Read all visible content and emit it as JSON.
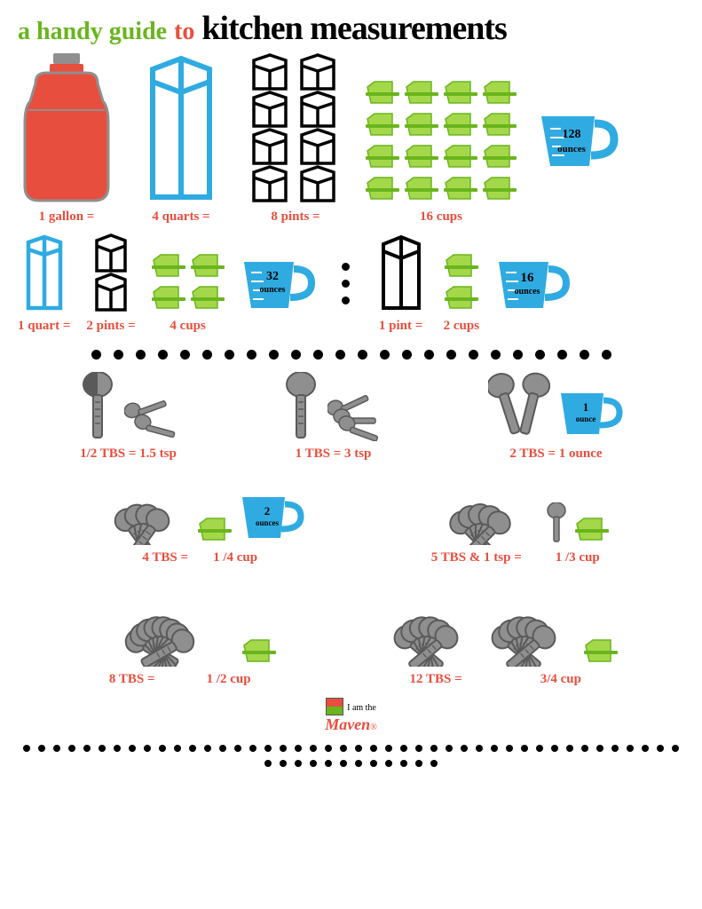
{
  "title": {
    "a_handy_guide": "a handy guide",
    "to": "to",
    "kitchen_measurements": "kitchen measurements",
    "color_green": "#6ab51e",
    "color_red": "#e84e3d",
    "color_black": "#000000"
  },
  "colors": {
    "red_fill": "#e84e3d",
    "blue": "#2fabe1",
    "green": "#a4d84a",
    "green_dark": "#6ab51e",
    "label_red": "#e84e3d",
    "gray": "#8f8f8f",
    "gray_dark": "#5a5a5a",
    "black": "#000000"
  },
  "row1": {
    "gallon_label": "1 gallon  =",
    "quarts_label": "4 quarts  =",
    "pints_label": "8 pints  =",
    "cups_label": "16 cups",
    "ounces_128": "128",
    "ounces_word": "ounces"
  },
  "row2": {
    "quart_label": "1 quart  =",
    "pints2_label": "2 pints  =",
    "cups4_label": "4 cups",
    "ounces_32": "32",
    "pint1_label": "1 pint  =",
    "cups2_label": "2 cups",
    "ounces_16": "16"
  },
  "row3": {
    "half_tbs": "1/2 TBS = 1.5 tsp",
    "one_tbs": "1 TBS =   3 tsp",
    "two_tbs": "2 TBS = 1 ounce",
    "ounce_1": "1",
    "ounce_word": "ounce"
  },
  "row4": {
    "four_tbs": "4 TBS =",
    "quarter_cup": "1 /4 cup",
    "ounces_2": "2",
    "five_tbs": "5 TBS & 1 tsp =",
    "third_cup": "1 /3 cup"
  },
  "row5": {
    "eight_tbs": "8 TBS =",
    "half_cup": "1 /2 cup",
    "twelve_tbs": "12 TBS =",
    "three_quarter": "3/4 cup"
  },
  "logo": {
    "iam": "I am the",
    "maven": "Maven",
    "reg": "®",
    "color": "#e84e3d"
  },
  "dots": {
    "count_big": 24,
    "count_small": 56
  }
}
